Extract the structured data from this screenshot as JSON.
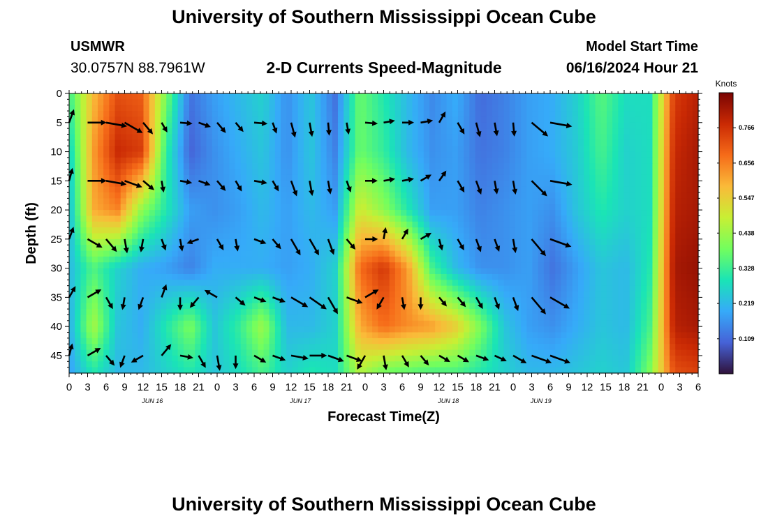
{
  "header": {
    "title": "University of Southern Mississippi Ocean Cube",
    "station_name": "USMWR",
    "coordinates": "30.0757N  88.7961W",
    "plot_title": "2-D Currents Speed-Magnitude",
    "model_start_label": "Model Start Time",
    "model_start_value": "06/16/2024 Hour 21"
  },
  "footer": {
    "title": "University of Southern Mississippi Ocean Cube"
  },
  "chart_data": {
    "type": "heatmap",
    "xlabel": "Forecast Time(Z)",
    "ylabel": "Depth (ft)",
    "x_tick_labels": [
      "0",
      "3",
      "6",
      "9",
      "12",
      "15",
      "18",
      "21",
      "0",
      "3",
      "6",
      "9",
      "12",
      "15",
      "18",
      "21",
      "0",
      "3",
      "6",
      "9",
      "12",
      "15",
      "18",
      "21",
      "0",
      "3",
      "6",
      "9",
      "12",
      "15",
      "18",
      "21",
      "0",
      "3",
      "6"
    ],
    "date_labels": [
      {
        "label": "JUN 16",
        "at_tick": 4.5
      },
      {
        "label": "JUN 17",
        "at_tick": 12.5
      },
      {
        "label": "JUN 18",
        "at_tick": 20.5
      },
      {
        "label": "JUN 19",
        "at_tick": 25.5
      }
    ],
    "y_ticks": [
      0,
      5,
      10,
      15,
      20,
      25,
      30,
      35,
      40,
      45
    ],
    "ylim": [
      0,
      48
    ],
    "xlim_ticks": [
      0,
      26
    ],
    "colorbar": {
      "title": "Knots",
      "tick_labels": [
        "0.766",
        "0.656",
        "0.547",
        "0.438",
        "0.328",
        "0.219",
        "0.109"
      ],
      "tick_values": [
        0.766,
        0.656,
        0.547,
        0.438,
        0.328,
        0.219,
        0.109
      ],
      "range": [
        0.0,
        0.875
      ],
      "colors": [
        "#30123b",
        "#4662d7",
        "#36aaf9",
        "#1ae4b6",
        "#72fe5e",
        "#c8ef34",
        "#faba39",
        "#f66b19",
        "#ca2a04",
        "#7a0403"
      ]
    },
    "speed_grid": {
      "x_ticks": [
        0,
        1,
        2,
        3,
        4,
        5,
        6,
        7,
        8,
        9,
        10,
        11,
        12,
        13,
        14,
        15,
        16,
        17,
        18,
        19,
        20,
        21,
        22,
        23,
        24,
        25,
        26
      ],
      "depths": [
        0,
        10,
        20,
        30,
        40,
        48
      ],
      "values": [
        [
          0.33,
          0.58,
          0.72,
          0.7,
          0.4,
          0.12,
          0.18,
          0.22,
          0.26,
          0.16,
          0.24,
          0.12,
          0.38,
          0.3,
          0.22,
          0.15,
          0.2,
          0.11,
          0.14,
          0.18,
          0.2,
          0.26,
          0.36,
          0.28,
          0.28,
          0.75,
          0.8
        ],
        [
          0.25,
          0.62,
          0.78,
          0.75,
          0.32,
          0.1,
          0.16,
          0.2,
          0.24,
          0.16,
          0.24,
          0.14,
          0.38,
          0.32,
          0.22,
          0.16,
          0.18,
          0.12,
          0.14,
          0.18,
          0.2,
          0.25,
          0.34,
          0.26,
          0.28,
          0.78,
          0.82
        ],
        [
          0.22,
          0.6,
          0.65,
          0.42,
          0.3,
          0.18,
          0.16,
          0.18,
          0.22,
          0.18,
          0.22,
          0.18,
          0.5,
          0.42,
          0.3,
          0.18,
          0.18,
          0.14,
          0.16,
          0.18,
          0.16,
          0.24,
          0.3,
          0.26,
          0.28,
          0.8,
          0.82
        ],
        [
          0.22,
          0.35,
          0.26,
          0.2,
          0.18,
          0.14,
          0.2,
          0.2,
          0.2,
          0.18,
          0.2,
          0.26,
          0.68,
          0.76,
          0.62,
          0.34,
          0.22,
          0.16,
          0.16,
          0.18,
          0.12,
          0.18,
          0.24,
          0.22,
          0.3,
          0.82,
          0.84
        ],
        [
          0.2,
          0.45,
          0.24,
          0.2,
          0.3,
          0.4,
          0.24,
          0.32,
          0.44,
          0.22,
          0.22,
          0.26,
          0.6,
          0.68,
          0.64,
          0.62,
          0.55,
          0.4,
          0.24,
          0.18,
          0.16,
          0.2,
          0.24,
          0.22,
          0.34,
          0.8,
          0.82
        ],
        [
          0.18,
          0.3,
          0.22,
          0.22,
          0.26,
          0.3,
          0.24,
          0.28,
          0.34,
          0.26,
          0.3,
          0.28,
          0.46,
          0.38,
          0.36,
          0.34,
          0.34,
          0.3,
          0.26,
          0.22,
          0.22,
          0.24,
          0.26,
          0.24,
          0.4,
          0.72,
          0.74
        ]
      ]
    },
    "current_vectors": {
      "x_ticks": [
        0,
        1,
        2,
        3,
        4,
        5,
        6,
        7,
        8,
        9,
        10,
        11,
        12,
        13,
        14,
        15,
        16,
        17,
        18,
        19,
        20,
        21,
        22,
        23,
        24,
        25,
        26
      ],
      "depths": [
        5,
        15,
        25,
        35,
        45
      ],
      "direction_deg": [
        [
          20,
          90,
          100,
          120,
          140,
          150,
          95,
          110,
          140,
          140,
          95,
          160,
          165,
          170,
          175,
          170,
          95,
          80,
          90,
          80,
          30,
          150,
          165,
          170,
          175,
          130,
          100
        ],
        [
          15,
          90,
          100,
          110,
          130,
          170,
          100,
          110,
          140,
          150,
          100,
          150,
          160,
          170,
          170,
          160,
          90,
          80,
          80,
          60,
          35,
          150,
          160,
          170,
          170,
          135,
          100
        ],
        [
          20,
          120,
          140,
          170,
          190,
          160,
          170,
          250,
          150,
          170,
          110,
          140,
          150,
          150,
          160,
          140,
          90,
          10,
          30,
          60,
          165,
          150,
          160,
          160,
          170,
          140,
          110
        ],
        [
          30,
          60,
          150,
          190,
          200,
          20,
          180,
          220,
          300,
          130,
          110,
          110,
          120,
          125,
          150,
          110,
          60,
          210,
          170,
          180,
          140,
          140,
          150,
          160,
          160,
          140,
          120
        ],
        [
          15,
          60,
          140,
          200,
          240,
          40,
          100,
          150,
          170,
          180,
          120,
          110,
          100,
          90,
          110,
          110,
          210,
          170,
          150,
          140,
          120,
          120,
          110,
          115,
          120,
          110,
          110
        ]
      ]
    }
  }
}
